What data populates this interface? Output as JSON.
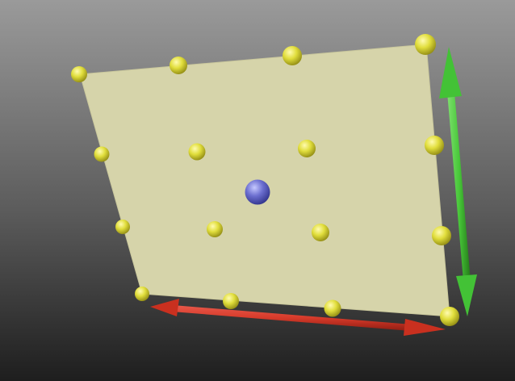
{
  "viewport": {
    "background_top": "#9a9a9a",
    "background_bottom": "#1e1e1e"
  },
  "plane": {
    "fill": "#d6d4aa",
    "edge": "#c9c79c",
    "control_points_outer": 12,
    "control_points_inner": 4
  },
  "control_point": {
    "color": "#e1de3c",
    "highlight": "#fffbb0",
    "shade": "#8a8410"
  },
  "center_handle": {
    "color": "#6c6fd0",
    "highlight": "#c6c9ff",
    "shade": "#2c2f86"
  },
  "axes": {
    "x_axis": {
      "color": "#d63a2a",
      "shade": "#8f1d12",
      "axis": "x"
    },
    "y_axis": {
      "color": "#49c83a",
      "shade": "#237a18",
      "axis": "y"
    }
  }
}
